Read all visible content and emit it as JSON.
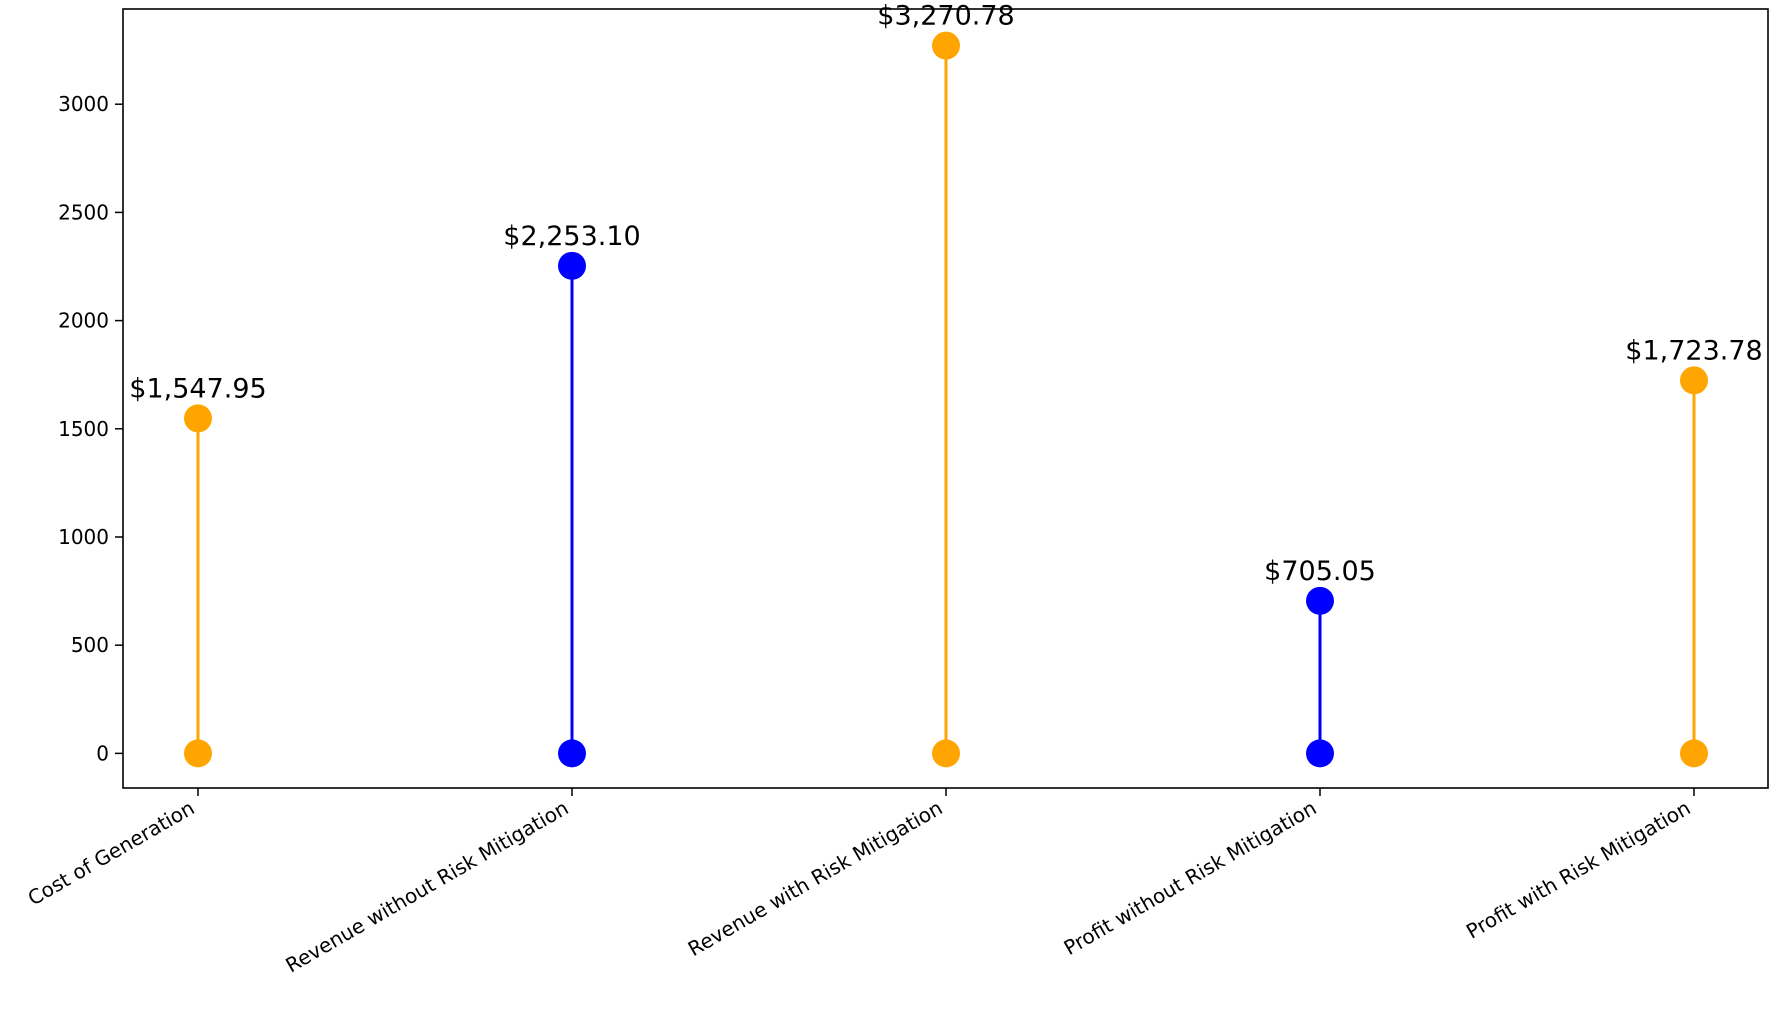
{
  "chart_data": {
    "type": "lollipop",
    "categories": [
      "Cost of Generation",
      "Revenue without Risk Mitigation",
      "Revenue with Risk Mitigation",
      "Profit without Risk Mitigation",
      "Profit with Risk Mitigation"
    ],
    "values": [
      1547.95,
      2253.1,
      3270.78,
      705.05,
      1723.78
    ],
    "data_labels": [
      "$1,547.95",
      "$2,253.10",
      "$3,270.78",
      "$705.05",
      "$1,723.78"
    ],
    "colors": [
      "#FFA500",
      "#0000FF",
      "#FFA500",
      "#0000FF",
      "#FFA500"
    ],
    "baseline": 0,
    "ylim": [
      -160,
      3440
    ],
    "yticks": [
      0,
      500,
      1000,
      1500,
      2000,
      2500,
      3000
    ],
    "xlabel": "",
    "ylabel": "",
    "title": "",
    "grid": false,
    "legend": "none"
  }
}
